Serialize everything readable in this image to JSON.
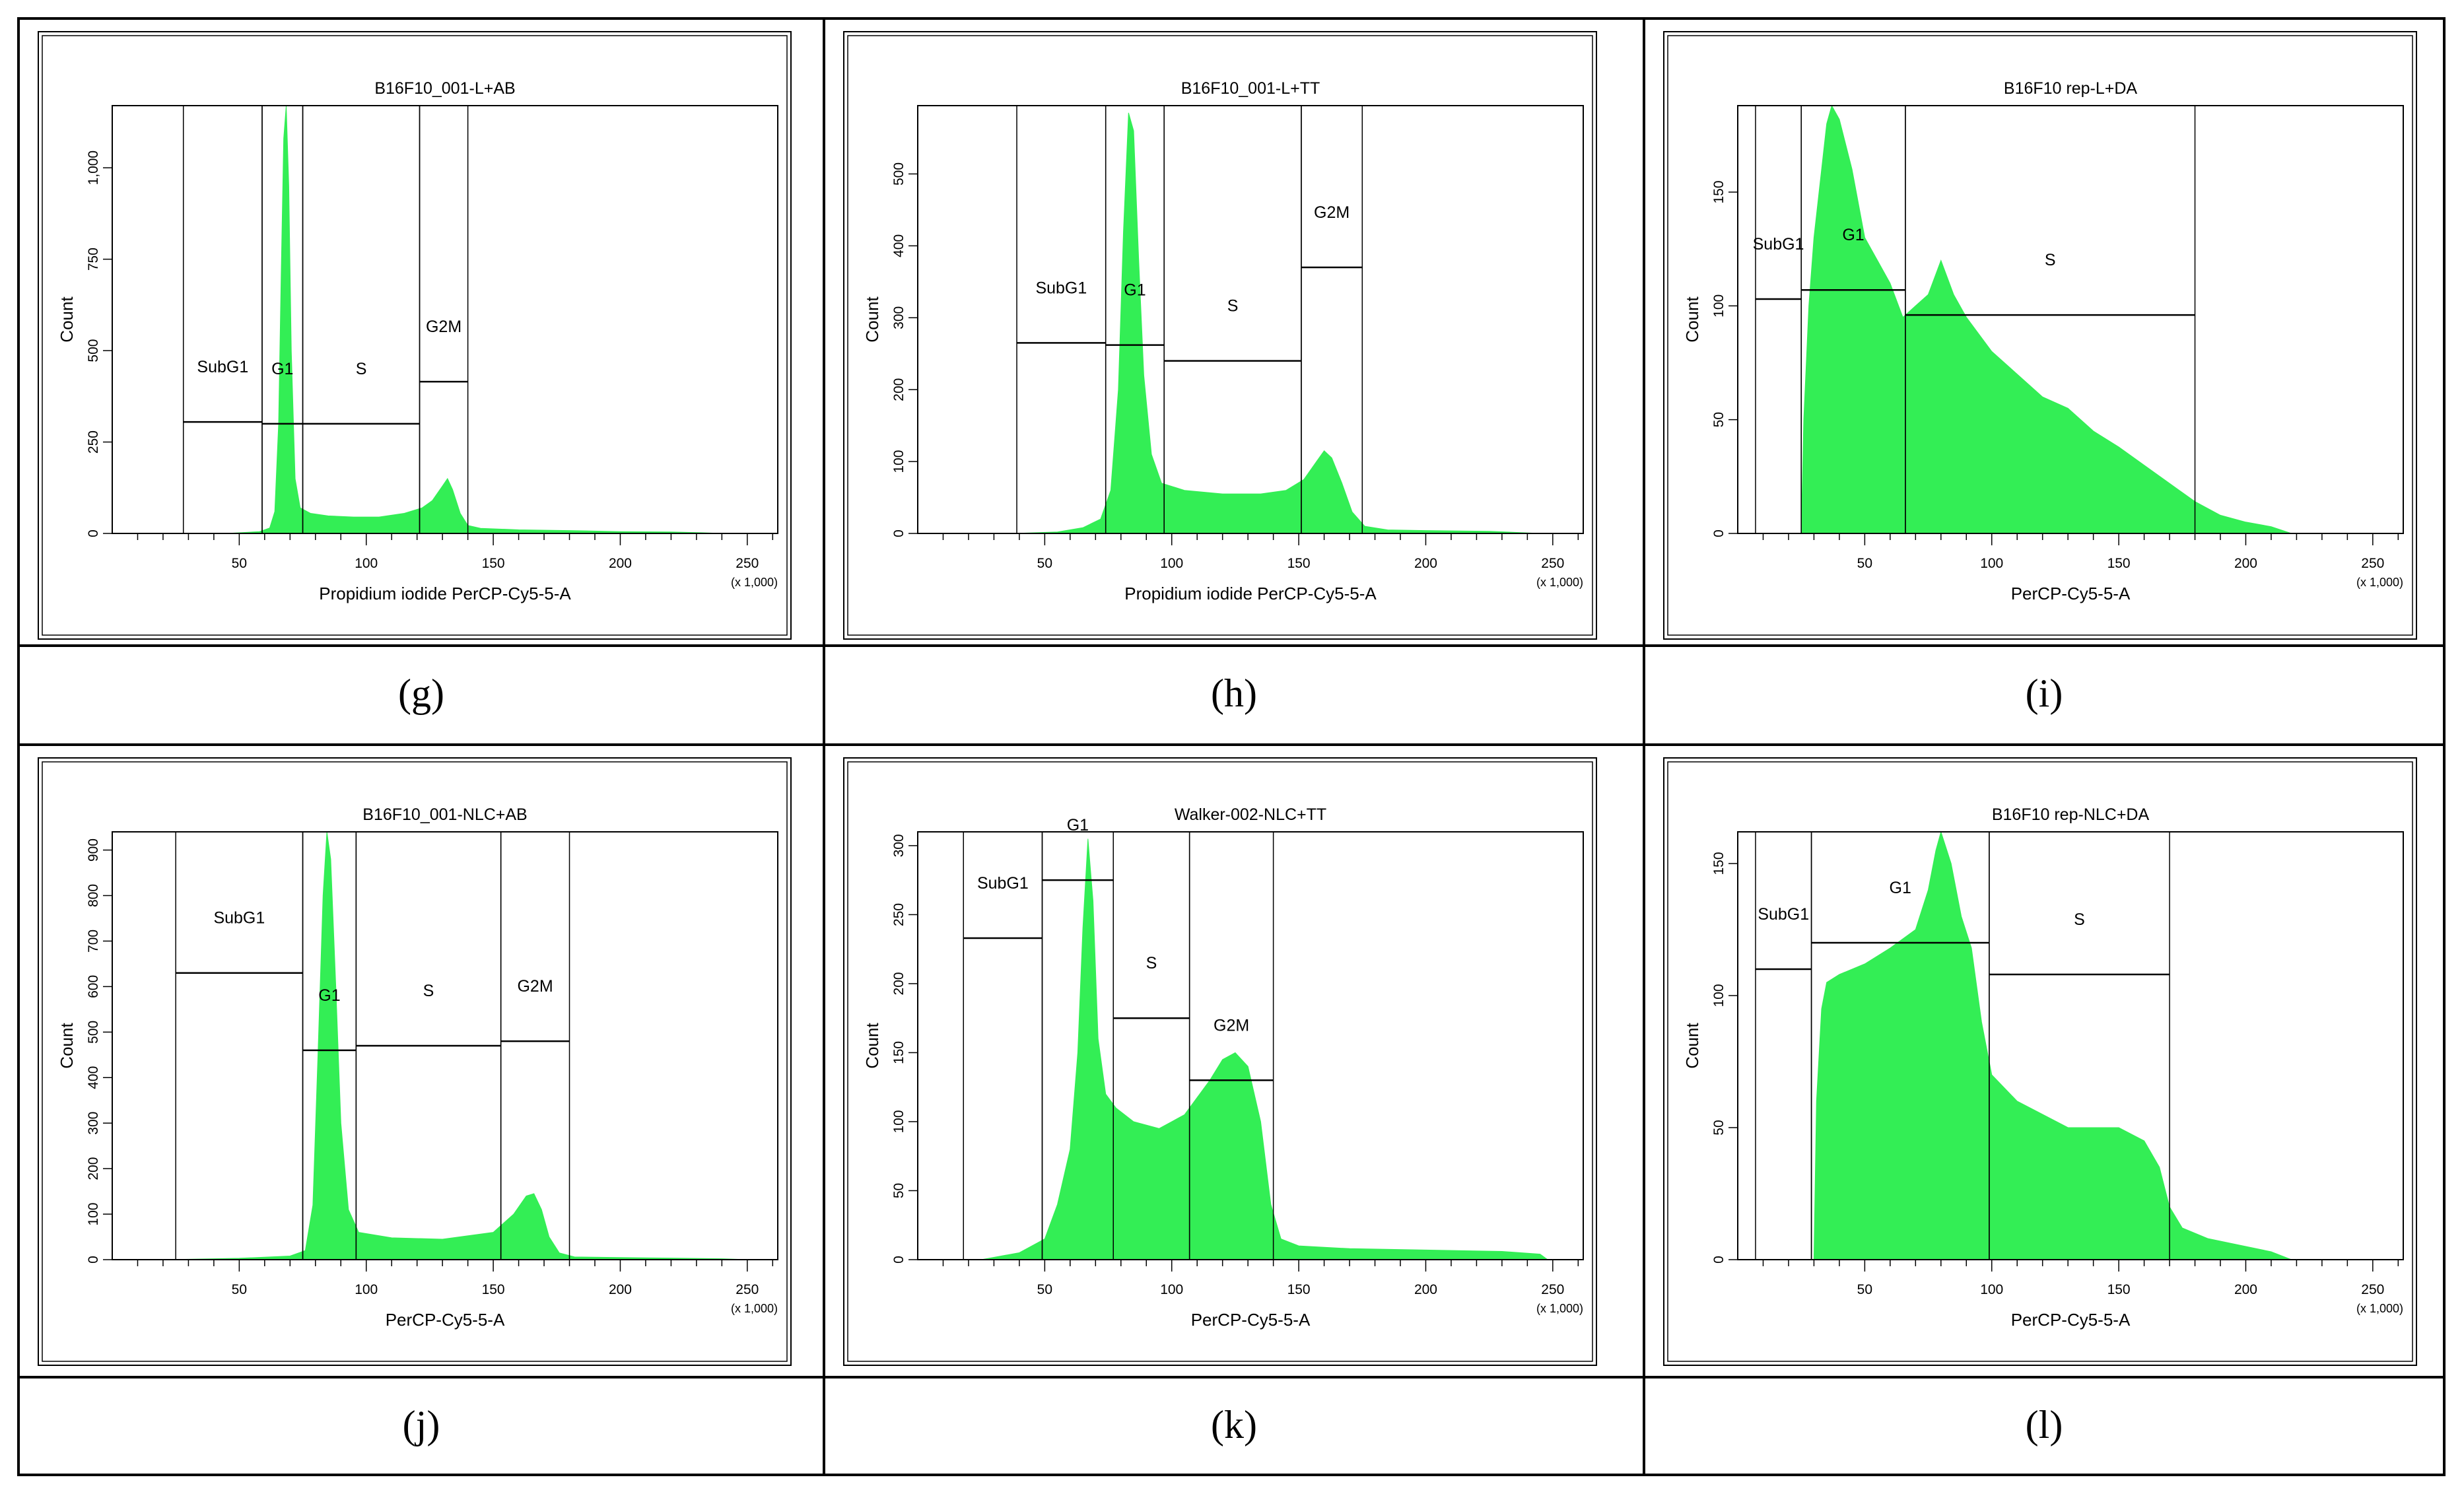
{
  "colors": {
    "histogram": "#33ee55",
    "line": "#000000",
    "panel_bg": "#ffffff"
  },
  "chart_data": [
    {
      "id": "g",
      "type": "area",
      "caption": "(g)",
      "title": "B16F10_001-L+AB",
      "xlabel": "Propidium iodide PerCP-Cy5-5-A",
      "ylabel": "Count",
      "x_unit": "(x 1,000)",
      "xlim": [
        0,
        262
      ],
      "ylim": [
        0,
        1170
      ],
      "xticks": [
        50,
        100,
        150,
        200,
        250
      ],
      "yticks": [
        0,
        250,
        500,
        750,
        1000
      ],
      "ytick_labels": [
        "0",
        "250",
        "500",
        "750",
        "1,000"
      ],
      "series": [
        {
          "values": [
            [
              26,
              0
            ],
            [
              45,
              0
            ],
            [
              58,
              5
            ],
            [
              62,
              15
            ],
            [
              64,
              60
            ],
            [
              65.5,
              300
            ],
            [
              66.5,
              700
            ],
            [
              67.5,
              1080
            ],
            [
              68.5,
              1170
            ],
            [
              69.5,
              950
            ],
            [
              70.5,
              500
            ],
            [
              72,
              150
            ],
            [
              74,
              70
            ],
            [
              78,
              55
            ],
            [
              85,
              48
            ],
            [
              95,
              45
            ],
            [
              105,
              45
            ],
            [
              115,
              55
            ],
            [
              122,
              70
            ],
            [
              126,
              90
            ],
            [
              130,
              130
            ],
            [
              132,
              150
            ],
            [
              134,
              120
            ],
            [
              137,
              55
            ],
            [
              140,
              22
            ],
            [
              145,
              14
            ],
            [
              160,
              10
            ],
            [
              180,
              8
            ],
            [
              200,
              5
            ],
            [
              220,
              4
            ],
            [
              232,
              2
            ],
            [
              240,
              0
            ]
          ]
        }
      ],
      "gates": [
        {
          "name": "SubG1",
          "x": [
            28,
            59
          ],
          "y": 305
        },
        {
          "name": "G1",
          "x": [
            59,
            75
          ],
          "y": 300
        },
        {
          "name": "S",
          "x": [
            75,
            121
          ],
          "y": 300
        },
        {
          "name": "G2M",
          "x": [
            121,
            140
          ],
          "y": 415
        }
      ]
    },
    {
      "id": "h",
      "type": "area",
      "caption": "(h)",
      "title": "B16F10_001-L+TT",
      "xlabel": "Propidium iodide PerCP-Cy5-5-A",
      "ylabel": "Count",
      "x_unit": "(x 1,000)",
      "xlim": [
        0,
        262
      ],
      "ylim": [
        0,
        595
      ],
      "xticks": [
        50,
        100,
        150,
        200,
        250
      ],
      "yticks": [
        0,
        100,
        200,
        300,
        400,
        500
      ],
      "ytick_labels": [
        "0",
        "100",
        "200",
        "300",
        "400",
        "500"
      ],
      "series": [
        {
          "values": [
            [
              38,
              0
            ],
            [
              55,
              2
            ],
            [
              65,
              8
            ],
            [
              72,
              20
            ],
            [
              76,
              60
            ],
            [
              79,
              200
            ],
            [
              81,
              420
            ],
            [
              83,
              585
            ],
            [
              85,
              560
            ],
            [
              87,
              380
            ],
            [
              89,
              220
            ],
            [
              92,
              110
            ],
            [
              96,
              70
            ],
            [
              105,
              60
            ],
            [
              120,
              55
            ],
            [
              135,
              55
            ],
            [
              145,
              60
            ],
            [
              152,
              75
            ],
            [
              157,
              100
            ],
            [
              160,
              115
            ],
            [
              163,
              105
            ],
            [
              167,
              70
            ],
            [
              171,
              30
            ],
            [
              176,
              10
            ],
            [
              185,
              5
            ],
            [
              200,
              4
            ],
            [
              225,
              3
            ],
            [
              245,
              0
            ]
          ]
        }
      ],
      "gates": [
        {
          "name": "SubG1",
          "x": [
            39,
            74
          ],
          "y": 265
        },
        {
          "name": "G1",
          "x": [
            74,
            97
          ],
          "y": 262
        },
        {
          "name": "S",
          "x": [
            97,
            151
          ],
          "y": 240
        },
        {
          "name": "G2M",
          "x": [
            151,
            175
          ],
          "y": 370
        }
      ]
    },
    {
      "id": "i",
      "type": "area",
      "caption": "(i)",
      "title": "B16F10 rep-L+DA",
      "xlabel": "PerCP-Cy5-5-A",
      "ylabel": "Count",
      "x_unit": "(x 1,000)",
      "xlim": [
        0,
        262
      ],
      "ylim": [
        0,
        188
      ],
      "xticks": [
        50,
        100,
        150,
        200,
        250
      ],
      "yticks": [
        0,
        50,
        100,
        150
      ],
      "ytick_labels": [
        "0",
        "50",
        "100",
        "150"
      ],
      "series": [
        {
          "values": [
            [
              25,
              0
            ],
            [
              26,
              50
            ],
            [
              28,
              100
            ],
            [
              30,
              130
            ],
            [
              33,
              160
            ],
            [
              35,
              180
            ],
            [
              37,
              188
            ],
            [
              40,
              182
            ],
            [
              45,
              160
            ],
            [
              50,
              130
            ],
            [
              55,
              120
            ],
            [
              60,
              110
            ],
            [
              65,
              95
            ],
            [
              70,
              100
            ],
            [
              75,
              105
            ],
            [
              80,
              120
            ],
            [
              85,
              105
            ],
            [
              90,
              95
            ],
            [
              100,
              80
            ],
            [
              110,
              70
            ],
            [
              120,
              60
            ],
            [
              130,
              55
            ],
            [
              140,
              45
            ],
            [
              150,
              38
            ],
            [
              160,
              30
            ],
            [
              170,
              22
            ],
            [
              180,
              14
            ],
            [
              190,
              8
            ],
            [
              200,
              5
            ],
            [
              210,
              3
            ],
            [
              218,
              0
            ]
          ]
        }
      ],
      "gates": [
        {
          "name": "SubG1",
          "x": [
            7,
            25
          ],
          "y": 103
        },
        {
          "name": "G1",
          "x": [
            25,
            66
          ],
          "y": 107
        },
        {
          "name": "S",
          "x": [
            66,
            180
          ],
          "y": 96
        }
      ]
    },
    {
      "id": "j",
      "type": "area",
      "caption": "(j)",
      "title": "B16F10_001-NLC+AB",
      "xlabel": "PerCP-Cy5-5-A",
      "ylabel": "Count",
      "x_unit": "(x 1,000)",
      "xlim": [
        0,
        262
      ],
      "ylim": [
        0,
        940
      ],
      "xticks": [
        50,
        100,
        150,
        200,
        250
      ],
      "yticks": [
        0,
        100,
        200,
        300,
        400,
        500,
        600,
        700,
        800,
        900
      ],
      "ytick_labels": [
        "0",
        "100",
        "200",
        "300",
        "400",
        "500",
        "600",
        "700",
        "800",
        "900"
      ],
      "series": [
        {
          "values": [
            [
              22,
              0
            ],
            [
              50,
              3
            ],
            [
              70,
              8
            ],
            [
              76,
              20
            ],
            [
              79,
              120
            ],
            [
              81,
              450
            ],
            [
              83,
              800
            ],
            [
              84.5,
              940
            ],
            [
              86,
              880
            ],
            [
              88,
              600
            ],
            [
              90,
              300
            ],
            [
              93,
              110
            ],
            [
              97,
              60
            ],
            [
              110,
              48
            ],
            [
              130,
              45
            ],
            [
              150,
              60
            ],
            [
              158,
              100
            ],
            [
              163,
              140
            ],
            [
              166,
              145
            ],
            [
              169,
              110
            ],
            [
              172,
              50
            ],
            [
              176,
              15
            ],
            [
              182,
              6
            ],
            [
              210,
              4
            ],
            [
              240,
              2
            ],
            [
              250,
              0
            ]
          ]
        }
      ],
      "gates": [
        {
          "name": "SubG1",
          "x": [
            25,
            75
          ],
          "y": 630
        },
        {
          "name": "G1",
          "x": [
            75,
            96
          ],
          "y": 460
        },
        {
          "name": "S",
          "x": [
            96,
            153
          ],
          "y": 470
        },
        {
          "name": "G2M",
          "x": [
            153,
            180
          ],
          "y": 480
        }
      ]
    },
    {
      "id": "k",
      "type": "area",
      "caption": "(k)",
      "title": "Walker-002-NLC+TT",
      "xlabel": "PerCP-Cy5-5-A",
      "ylabel": "Count",
      "x_unit": "(x 1,000)",
      "xlim": [
        0,
        262
      ],
      "ylim": [
        0,
        310
      ],
      "xticks": [
        50,
        100,
        150,
        200,
        250
      ],
      "yticks": [
        0,
        50,
        100,
        150,
        200,
        250,
        300
      ],
      "ytick_labels": [
        "0",
        "50",
        "100",
        "150",
        "200",
        "250",
        "300"
      ],
      "series": [
        {
          "values": [
            [
              25,
              0
            ],
            [
              40,
              5
            ],
            [
              50,
              15
            ],
            [
              55,
              40
            ],
            [
              60,
              80
            ],
            [
              63,
              150
            ],
            [
              65,
              240
            ],
            [
              67,
              305
            ],
            [
              69,
              260
            ],
            [
              71,
              160
            ],
            [
              74,
              120
            ],
            [
              78,
              110
            ],
            [
              85,
              100
            ],
            [
              95,
              95
            ],
            [
              105,
              105
            ],
            [
              115,
              130
            ],
            [
              120,
              145
            ],
            [
              125,
              150
            ],
            [
              130,
              140
            ],
            [
              135,
              100
            ],
            [
              139,
              40
            ],
            [
              143,
              15
            ],
            [
              150,
              10
            ],
            [
              170,
              8
            ],
            [
              200,
              7
            ],
            [
              230,
              6
            ],
            [
              245,
              4
            ],
            [
              248,
              0
            ]
          ]
        }
      ],
      "gates": [
        {
          "name": "SubG1",
          "x": [
            18,
            49
          ],
          "y": 233
        },
        {
          "name": "G1",
          "x": [
            49,
            77
          ],
          "y": 275
        },
        {
          "name": "S",
          "x": [
            77,
            107
          ],
          "y": 175
        },
        {
          "name": "G2M",
          "x": [
            107,
            140
          ],
          "y": 130
        }
      ]
    },
    {
      "id": "l",
      "type": "area",
      "caption": "(l)",
      "title": "B16F10 rep-NLC+DA",
      "xlabel": "PerCP-Cy5-5-A",
      "ylabel": "Count",
      "x_unit": "(x 1,000)",
      "xlim": [
        0,
        262
      ],
      "ylim": [
        0,
        162
      ],
      "xticks": [
        50,
        100,
        150,
        200,
        250
      ],
      "yticks": [
        0,
        50,
        100,
        150
      ],
      "ytick_labels": [
        "0",
        "50",
        "100",
        "150"
      ],
      "series": [
        {
          "values": [
            [
              30,
              0
            ],
            [
              31,
              60
            ],
            [
              33,
              95
            ],
            [
              35,
              105
            ],
            [
              40,
              108
            ],
            [
              50,
              112
            ],
            [
              60,
              118
            ],
            [
              70,
              125
            ],
            [
              75,
              140
            ],
            [
              78,
              155
            ],
            [
              80,
              162
            ],
            [
              84,
              150
            ],
            [
              88,
              130
            ],
            [
              92,
              118
            ],
            [
              96,
              90
            ],
            [
              100,
              70
            ],
            [
              110,
              60
            ],
            [
              120,
              55
            ],
            [
              130,
              50
            ],
            [
              140,
              50
            ],
            [
              150,
              50
            ],
            [
              160,
              45
            ],
            [
              166,
              35
            ],
            [
              170,
              20
            ],
            [
              175,
              12
            ],
            [
              185,
              8
            ],
            [
              200,
              5
            ],
            [
              210,
              3
            ],
            [
              218,
              0
            ]
          ]
        }
      ],
      "gates": [
        {
          "name": "SubG1",
          "x": [
            7,
            29
          ],
          "y": 110
        },
        {
          "name": "G1",
          "x": [
            29,
            99
          ],
          "y": 120
        },
        {
          "name": "S",
          "x": [
            99,
            170
          ],
          "y": 108
        }
      ]
    }
  ]
}
